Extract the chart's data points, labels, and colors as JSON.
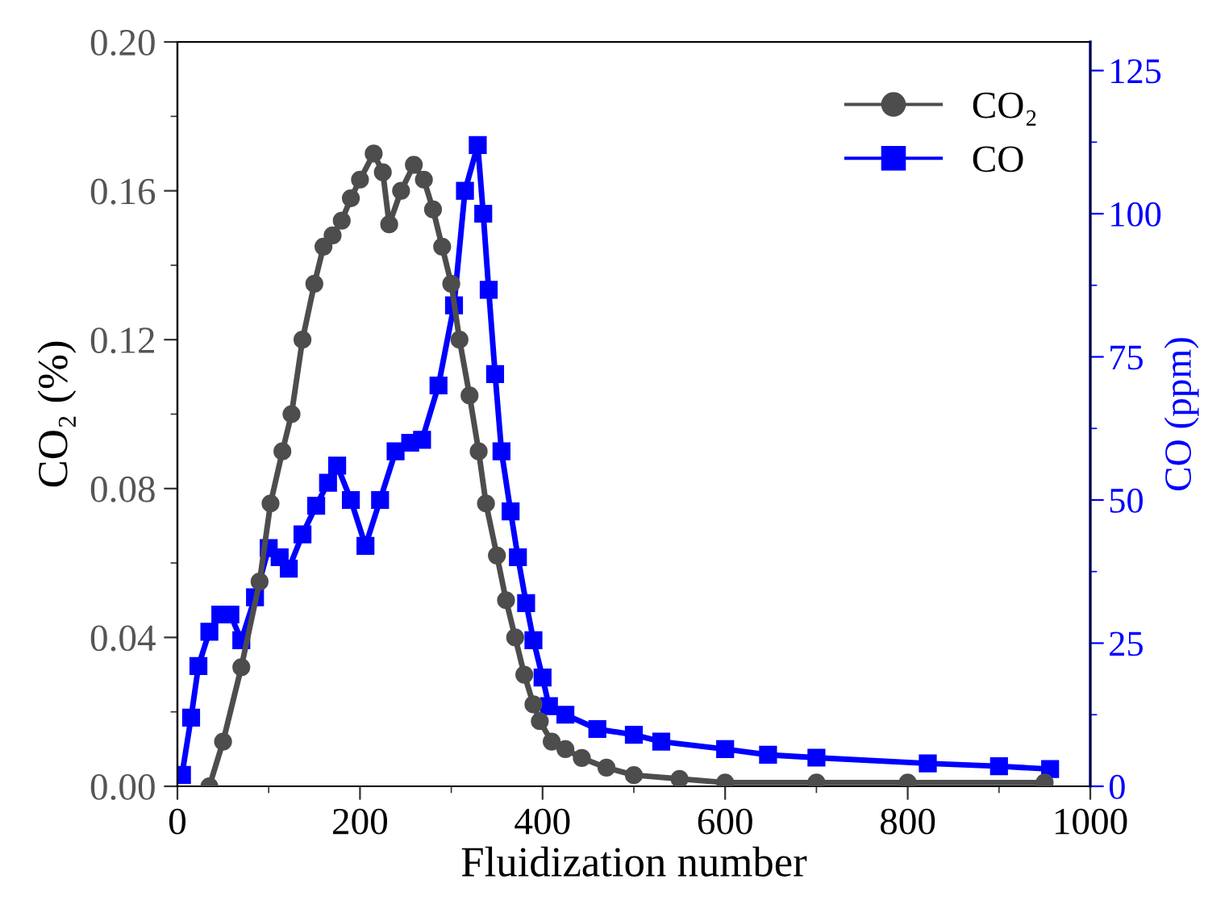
{
  "chart_data": {
    "type": "line",
    "xlabel": "Fluidization number",
    "ylabel": "CO₂ (%)",
    "y2label": "CO (ppm)",
    "xlim": [
      0,
      1000
    ],
    "xticks": [
      0,
      200,
      400,
      600,
      800,
      1000
    ],
    "ylim": [
      0,
      0.2
    ],
    "yticks": [
      {
        "value": 0,
        "label": "0.00"
      },
      {
        "value": 0.04,
        "label": "0.04"
      },
      {
        "value": 0.08,
        "label": "0.08"
      },
      {
        "value": 0.12,
        "label": "0.12"
      },
      {
        "value": 0.16,
        "label": "0.16"
      },
      {
        "value": 0.2,
        "label": "0.20"
      }
    ],
    "y2lim": [
      0,
      130
    ],
    "y2ticks": [
      0,
      25,
      50,
      75,
      100,
      125
    ],
    "legend": "top right",
    "grid": false,
    "line_style": "solid",
    "series": [
      {
        "name": "CO₂",
        "color": "#4d4d4d",
        "marker": "circle",
        "x": [
          35,
          50,
          70,
          90,
          102,
          115,
          125,
          137,
          150,
          160,
          170,
          180,
          190,
          200,
          215,
          225,
          232,
          245,
          259,
          270,
          280,
          290,
          300,
          309,
          320,
          330,
          338,
          350,
          360,
          370,
          380,
          390,
          397,
          410,
          425,
          443,
          470,
          500,
          550,
          600,
          700,
          800,
          950
        ],
        "values": [
          0,
          0.012,
          0.032,
          0.055,
          0.076,
          0.09,
          0.1,
          0.12,
          0.135,
          0.145,
          0.148,
          0.152,
          0.158,
          0.163,
          0.17,
          0.165,
          0.151,
          0.16,
          0.167,
          0.163,
          0.155,
          0.145,
          0.135,
          0.12,
          0.105,
          0.09,
          0.076,
          0.062,
          0.05,
          0.04,
          0.03,
          0.022,
          0.0175,
          0.012,
          0.01,
          0.0076,
          0.005,
          0.003,
          0.002,
          0.001,
          0.001,
          0.001,
          0.001
        ]
      },
      {
        "name": "CO",
        "color": "#0000ff",
        "marker": "square",
        "axis": "y2",
        "x": [
          5,
          15,
          23,
          35,
          47,
          58,
          70,
          85,
          100,
          112,
          122,
          137,
          152,
          165,
          175,
          190,
          206,
          222,
          239,
          255,
          268,
          286,
          303,
          315,
          329,
          335,
          341,
          348,
          355,
          365,
          373,
          382,
          390,
          400,
          407,
          425,
          460,
          500,
          530,
          600,
          647,
          700,
          822,
          900,
          956
        ],
        "values": [
          2,
          12,
          21,
          27,
          30,
          30,
          25.5,
          33,
          41.6,
          40,
          38,
          44,
          49,
          53,
          56,
          50,
          42,
          50,
          58.5,
          60,
          60.5,
          70,
          84,
          104,
          112,
          100,
          86.7,
          72,
          58.5,
          48,
          40,
          32,
          25.5,
          19,
          14,
          12.5,
          10,
          9,
          7.8,
          6.5,
          5.5,
          5,
          4,
          3.5,
          3
        ]
      }
    ]
  }
}
